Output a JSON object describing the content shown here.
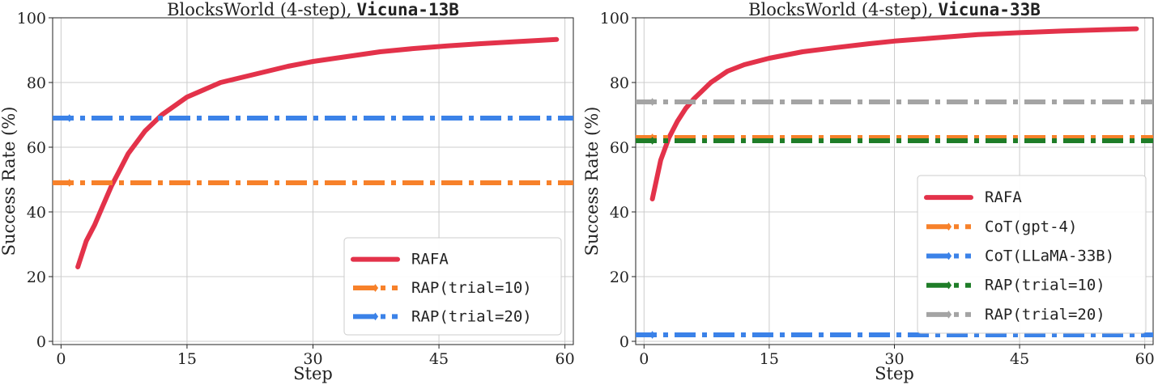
{
  "chart_data": [
    {
      "type": "line",
      "title_prefix": "BlocksWorld (4-step),",
      "title_model": "Vicuna-13B",
      "xlabel": "Step",
      "ylabel": "Success Rate (%)",
      "xlim": [
        -1,
        61
      ],
      "ylim": [
        -1,
        100
      ],
      "xticks": [
        0,
        15,
        30,
        45,
        60
      ],
      "yticks": [
        0,
        20,
        40,
        60,
        80,
        100
      ],
      "grid": true,
      "legend_position": "lower-right",
      "series": [
        {
          "name": "RAFA",
          "style": "solid",
          "color": "#e3324a",
          "x": [
            2,
            3,
            4,
            5,
            6,
            7,
            8,
            10,
            12,
            15,
            19,
            23,
            27,
            30,
            34,
            38,
            42,
            46,
            50,
            54,
            59
          ],
          "y": [
            23,
            31,
            36,
            42,
            48,
            53,
            58,
            65,
            70,
            75.5,
            80,
            82.5,
            85,
            86.5,
            88,
            89.5,
            90.5,
            91.3,
            92,
            92.6,
            93.3
          ]
        },
        {
          "name": "RAP(trial=10)",
          "style": "dashdot",
          "color": "#f7812a",
          "constant": 49,
          "marker_x": 1
        },
        {
          "name": "RAP(trial=20)",
          "style": "dashdot",
          "color": "#3b82e8",
          "constant": 69,
          "marker_x": 1
        }
      ]
    },
    {
      "type": "line",
      "title_prefix": "BlocksWorld (4-step),",
      "title_model": "Vicuna-33B",
      "xlabel": "Step",
      "ylabel": "Success Rate (%)",
      "xlim": [
        -1,
        61
      ],
      "ylim": [
        -1,
        100
      ],
      "xticks": [
        0,
        15,
        30,
        45,
        60
      ],
      "yticks": [
        0,
        20,
        40,
        60,
        80,
        100
      ],
      "grid": true,
      "legend_position": "lower-right",
      "series": [
        {
          "name": "RAFA",
          "style": "solid",
          "color": "#e3324a",
          "x": [
            1,
            2,
            3,
            4,
            5,
            6,
            7,
            8,
            10,
            12,
            15,
            19,
            23,
            27,
            30,
            35,
            40,
            45,
            50,
            55,
            59
          ],
          "y": [
            44,
            56,
            63,
            68,
            72,
            75,
            77.5,
            80,
            83.5,
            85.5,
            87.5,
            89.5,
            90.8,
            92,
            92.8,
            93.8,
            94.8,
            95.4,
            95.9,
            96.3,
            96.6
          ]
        },
        {
          "name": "CoT(gpt-4)",
          "style": "dashdot",
          "color": "#f7812a",
          "constant": 63,
          "marker_x": 1
        },
        {
          "name": "CoT(LLaMA-33B)",
          "style": "dashdot",
          "color": "#3b82e8",
          "constant": 2,
          "marker_x": 1
        },
        {
          "name": "RAP(trial=10)",
          "style": "dashdot",
          "color": "#1f7d28",
          "constant": 62,
          "marker_x": 1
        },
        {
          "name": "RAP(trial=20)",
          "style": "dashdot",
          "color": "#a4a4a4",
          "constant": 74,
          "marker_x": 1
        }
      ]
    }
  ]
}
